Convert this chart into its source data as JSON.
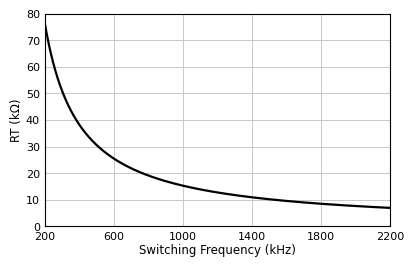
{
  "title": "",
  "xlabel": "Switching Frequency (kHz)",
  "ylabel": "RT (kΩ)",
  "xlim": [
    200,
    2200
  ],
  "ylim": [
    0,
    80
  ],
  "xticks": [
    200,
    600,
    1000,
    1400,
    1800,
    2200
  ],
  "yticks": [
    0,
    10,
    20,
    30,
    40,
    50,
    60,
    70,
    80
  ],
  "line_color": "#000000",
  "line_width": 1.6,
  "grid_color": "#c8c8c8",
  "grid_linewidth": 0.7,
  "background_color": "#ffffff",
  "curve_k": 15300,
  "x_start": 200,
  "x_end": 2200,
  "font_size_labels": 8.5,
  "font_size_ticks": 8.0,
  "spine_linewidth": 0.8,
  "figwidth": 4.06,
  "figheight": 2.66,
  "dpi": 100
}
